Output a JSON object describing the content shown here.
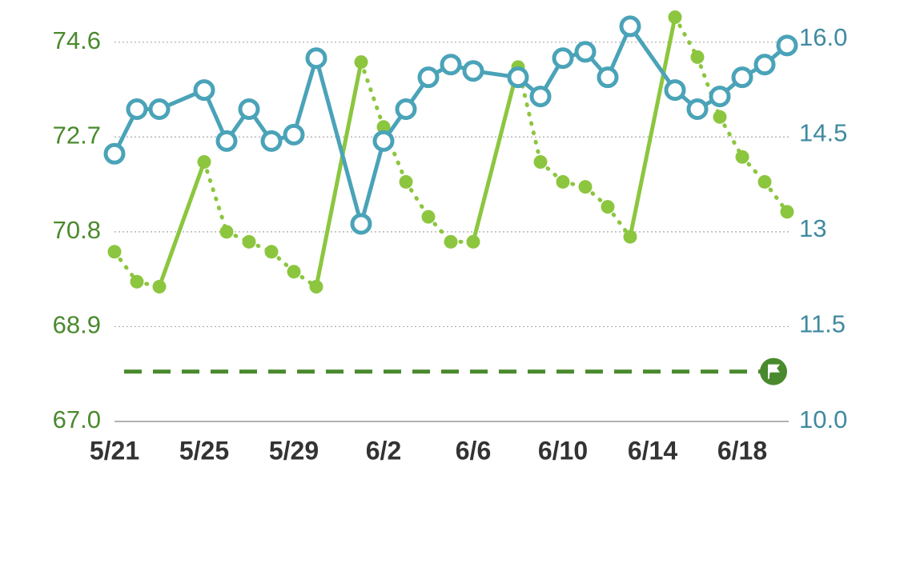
{
  "chart_data": {
    "type": "line",
    "categories": [
      "5/21",
      null,
      null,
      null,
      "5/25",
      null,
      null,
      null,
      "5/29",
      null,
      null,
      null,
      "6/2",
      null,
      null,
      null,
      "6/6",
      null,
      null,
      null,
      "6/10",
      null,
      null,
      null,
      "6/14",
      null,
      null,
      null,
      "6/18",
      null,
      null
    ],
    "series": [
      {
        "name": null,
        "color": "#8cc63f",
        "axis": "y",
        "style": "dotted",
        "values": [
          70.4,
          69.8,
          69.7,
          null,
          72.2,
          70.8,
          70.6,
          70.4,
          70.0,
          69.7,
          null,
          74.2,
          72.9,
          71.8,
          71.1,
          70.6,
          70.6,
          null,
          74.1,
          72.2,
          71.8,
          71.7,
          71.3,
          70.7,
          null,
          75.1,
          74.3,
          73.1,
          72.3,
          71.8,
          71.2
        ]
      },
      {
        "name": null,
        "color": "#4aa3b8",
        "axis": "y2",
        "style": "solid",
        "values": [
          14.2,
          14.9,
          14.9,
          null,
          15.2,
          14.4,
          14.9,
          14.4,
          14.5,
          15.7,
          null,
          13.1,
          14.4,
          14.9,
          15.4,
          15.6,
          15.5,
          null,
          15.4,
          15.1,
          15.7,
          15.8,
          15.4,
          16.2,
          null,
          15.2,
          14.9,
          15.1,
          15.4,
          15.6,
          15.9
        ]
      }
    ],
    "goal": {
      "value": 68.0,
      "color": "#4a8a2e",
      "axis": "y"
    },
    "ylim": [
      67.0,
      75.3
    ],
    "yticks": [
      {
        "value": 67.0,
        "label": "67.0"
      },
      68.9,
      70.8,
      72.7,
      74.6
    ],
    "y2lim": [
      10.0,
      16.5
    ],
    "y2ticks": [
      {
        "value": 10.0,
        "label": "10.0"
      },
      11.5,
      13.0,
      14.5,
      {
        "value": 16.0,
        "label": "16.0"
      }
    ],
    "ytick_color": "#4a8a2e",
    "y2tick_color": "#3f8aa0",
    "grid": true
  }
}
